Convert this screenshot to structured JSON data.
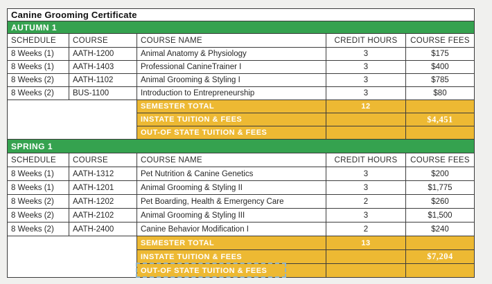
{
  "title": "Canine Grooming Certificate",
  "columns": [
    "SCHEDULE",
    "COURSE",
    "COURSE NAME",
    "CREDIT HOURS",
    "COURSE FEES"
  ],
  "colors": {
    "section_band_green": "#35A24F",
    "totals_yellow": "#EDB933",
    "grid_line": "#3B3B3B",
    "copy_marquee_blue": "#8FB3C7",
    "totals_text": "#FFFFFF"
  },
  "sections": [
    {
      "name": "AUTUMN 1",
      "rows": [
        {
          "schedule": "8 Weeks (1)",
          "course": "AATH-1200",
          "course_name": "Animal Anatomy & Physiology",
          "credit_hours": "3",
          "course_fees": "$175"
        },
        {
          "schedule": "8 Weeks (1)",
          "course": "AATH-1403",
          "course_name": "Professional CanineTrainer I",
          "credit_hours": "3",
          "course_fees": "$400"
        },
        {
          "schedule": "8 Weeks (2)",
          "course": "AATH-1102",
          "course_name": "Animal Grooming & Styling I",
          "credit_hours": "3",
          "course_fees": "$785"
        },
        {
          "schedule": "8 Weeks (2)",
          "course": "BUS-1100",
          "course_name": "Introduction to Entrepreneurship",
          "credit_hours": "3",
          "course_fees": "$80"
        }
      ],
      "totals": {
        "semester_label": "SEMESTER TOTAL",
        "semester_credits": "12",
        "instate_label": "INSTATE TUITION & FEES",
        "instate_fees": "$4,451",
        "outstate_label": "OUT-OF STATE TUITION & FEES",
        "outstate_fees": ""
      }
    },
    {
      "name": "SPRING 1",
      "rows": [
        {
          "schedule": "8 Weeks (1)",
          "course": "AATH-1312",
          "course_name": "Pet Nutrition & Canine Genetics",
          "credit_hours": "3",
          "course_fees": "$200"
        },
        {
          "schedule": "8 Weeks (1)",
          "course": "AATH-1201",
          "course_name": "Animal Grooming & Styling II",
          "credit_hours": "3",
          "course_fees": "$1,775"
        },
        {
          "schedule": "8 Weeks (2)",
          "course": "AATH-1202",
          "course_name": "Pet Boarding, Health & Emergency Care",
          "credit_hours": "2",
          "course_fees": "$260"
        },
        {
          "schedule": "8 Weeks (2)",
          "course": "AATH-2102",
          "course_name": "Animal Grooming & Styling III",
          "credit_hours": "3",
          "course_fees": "$1,500"
        },
        {
          "schedule": "8 Weeks (2)",
          "course": "AATH-2400",
          "course_name": "Canine Behavior Modification I",
          "credit_hours": "2",
          "course_fees": "$240"
        }
      ],
      "totals": {
        "semester_label": "SEMESTER TOTAL",
        "semester_credits": "13",
        "instate_label": "INSTATE TUITION & FEES",
        "instate_fees": "$7,204",
        "outstate_label": "OUT-OF STATE TUITION & FEES",
        "outstate_fees": ""
      }
    }
  ]
}
